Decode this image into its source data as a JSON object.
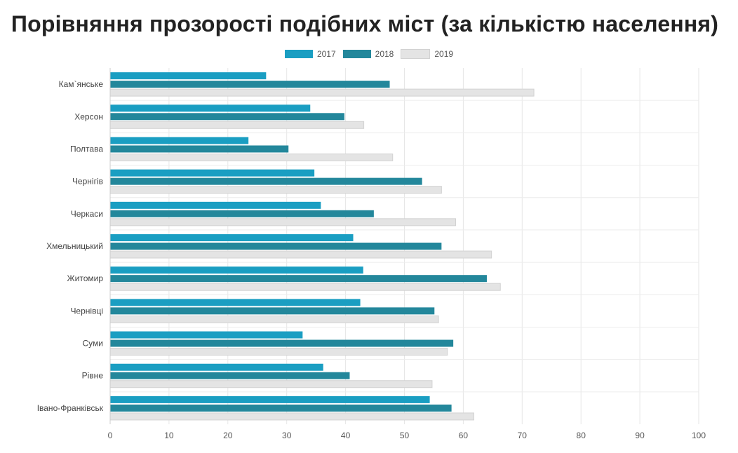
{
  "chart_data": {
    "type": "bar",
    "orientation": "horizontal",
    "title": "Порівняння прозорості подібних міст (за кількістю населення)",
    "xlabel": "",
    "ylabel": "",
    "xlim": [
      0,
      100
    ],
    "xticks": [
      "0",
      "10",
      "20",
      "30",
      "40",
      "50",
      "60",
      "70",
      "80",
      "90",
      "100"
    ],
    "grid": true,
    "legend_position": "top-center",
    "categories": [
      "Кам`янське",
      "Херсон",
      "Полтава",
      "Чернігів",
      "Черкаси",
      "Хмельницький",
      "Житомир",
      "Чернівці",
      "Суми",
      "Рівне",
      "Івано-Франківськ"
    ],
    "series": [
      {
        "name": "2017",
        "color": "#1a9ec2",
        "values": [
          26.5,
          34,
          23.5,
          34.7,
          35.8,
          41.3,
          43,
          42.5,
          32.7,
          36.2,
          54.3
        ]
      },
      {
        "name": "2018",
        "color": "#23879b",
        "values": [
          47.5,
          39.8,
          30.3,
          53,
          44.8,
          56.3,
          64,
          55.1,
          58.3,
          40.7,
          58
        ]
      },
      {
        "name": "2019",
        "color": "#e4e4e4",
        "values": [
          72,
          43.1,
          48,
          56.3,
          58.7,
          64.8,
          66.3,
          55.8,
          57.3,
          54.7,
          61.8
        ]
      }
    ]
  }
}
